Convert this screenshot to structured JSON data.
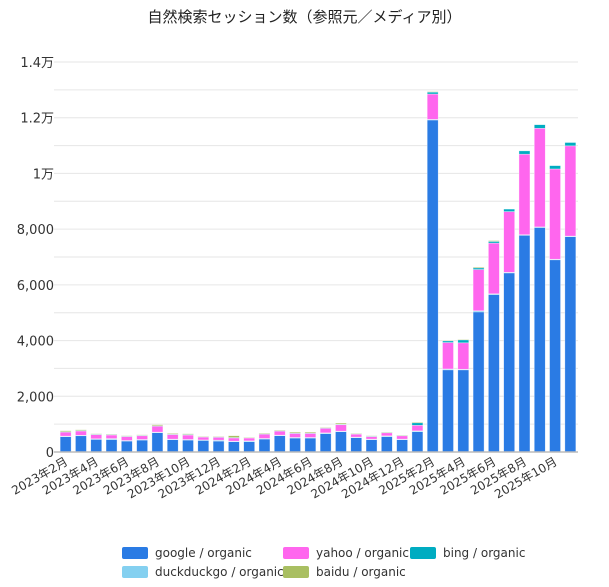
{
  "chart_data": {
    "type": "bar",
    "stacked": true,
    "title": "自然検索セッション数（参照元／メディア別）",
    "xlabel": "",
    "ylabel": "",
    "ylim": [
      0,
      14000
    ],
    "yticks": [
      0,
      2000,
      4000,
      6000,
      8000,
      10000,
      12000,
      14000
    ],
    "ytick_labels": [
      "0",
      "2,000",
      "4,000",
      "6,000",
      "8,000",
      "1万",
      "1.2万",
      "1.4万"
    ],
    "grid": true,
    "legend": "bottom",
    "categories": [
      "2023年2月",
      "2023年3月",
      "2023年4月",
      "2023年5月",
      "2023年6月",
      "2023年7月",
      "2023年8月",
      "2023年9月",
      "2023年10月",
      "2023年11月",
      "2023年12月",
      "2024年1月",
      "2024年2月",
      "2024年3月",
      "2024年4月",
      "2024年5月",
      "2024年6月",
      "2024年7月",
      "2024年8月",
      "2024年9月",
      "2024年10月",
      "2024年11月",
      "2024年12月",
      "2025年1月",
      "2025年2月",
      "2025年3月",
      "2025年4月",
      "2025年5月",
      "2025年6月",
      "2025年7月",
      "2025年8月",
      "2025年9月",
      "2025年10月",
      "2025年11月"
    ],
    "xtick_labels_shown": [
      "2023年2月",
      "2023年4月",
      "2023年6月",
      "2023年8月",
      "2023年10月",
      "2023年12月",
      "2024年2月",
      "2024年4月",
      "2024年6月",
      "2024年8月",
      "2024年10月",
      "2024年12月",
      "2025年2月",
      "2025年4月",
      "2025年6月",
      "2025年8月",
      "2025年10月"
    ],
    "series": [
      {
        "name": "google / organic",
        "color": "#2a7be4",
        "values": [
          550,
          585,
          454,
          442,
          394,
          430,
          693,
          442,
          430,
          418,
          394,
          370,
          370,
          466,
          585,
          502,
          502,
          657,
          729,
          514,
          442,
          550,
          442,
          729,
          11920,
          2950,
          2950,
          5030,
          5650,
          6430,
          7780,
          8060,
          6900,
          7730
        ]
      },
      {
        "name": "duckduckgo / organic",
        "color": "#84d0f0",
        "values": [
          20,
          15,
          20,
          40,
          20,
          20,
          20,
          20,
          20,
          15,
          30,
          20,
          30,
          20,
          20,
          20,
          20,
          30,
          20,
          20,
          20,
          30,
          20,
          30,
          20,
          30,
          20,
          40,
          30,
          20,
          20,
          20,
          20,
          20
        ]
      },
      {
        "name": "yahoo / organic",
        "color": "#ff66ee",
        "values": [
          150,
          160,
          150,
          130,
          140,
          140,
          220,
          170,
          160,
          110,
          110,
          120,
          110,
          160,
          150,
          150,
          150,
          170,
          230,
          110,
          90,
          110,
          120,
          200,
          910,
          950,
          950,
          1480,
          1820,
          2180,
          2890,
          3540,
          3240,
          3240
        ]
      },
      {
        "name": "bing / organic",
        "color": "#00acc1",
        "values": [
          10,
          10,
          30,
          20,
          30,
          10,
          10,
          10,
          20,
          10,
          10,
          10,
          10,
          10,
          10,
          10,
          10,
          10,
          20,
          20,
          30,
          20,
          20,
          90,
          70,
          70,
          110,
          60,
          60,
          90,
          120,
          130,
          120,
          120
        ]
      },
      {
        "name": "baidu / organic",
        "color": "#a9bf62",
        "values": [
          35,
          30,
          3,
          13,
          1,
          20,
          37,
          28,
          27,
          7,
          16,
          65,
          6,
          25,
          24,
          35,
          35,
          17,
          41,
          5,
          3,
          7,
          7,
          26,
          20,
          5,
          10,
          30,
          30,
          0,
          0,
          0,
          0,
          0
        ]
      }
    ]
  }
}
